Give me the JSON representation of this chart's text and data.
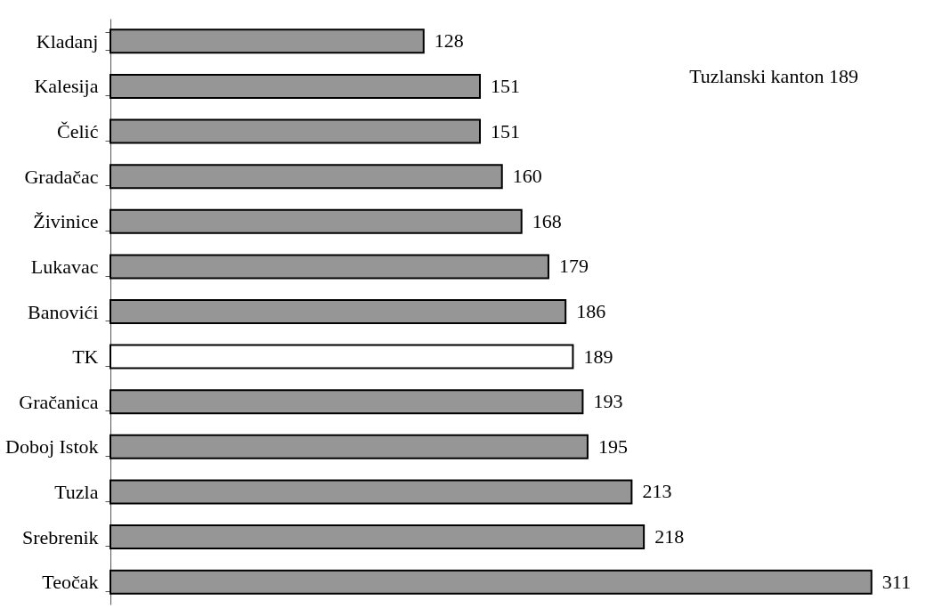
{
  "chart_data": {
    "type": "bar",
    "orientation": "horizontal",
    "categories": [
      "Kladanj",
      "Kalesija",
      "Čelić",
      "Gradačac",
      "Živinice",
      "Lukavac",
      "Banovići",
      "TK",
      "Gračanica",
      "Doboj Istok",
      "Tuzla",
      "Srebrenik",
      "Teočak"
    ],
    "values": [
      128,
      151,
      151,
      160,
      168,
      179,
      186,
      189,
      193,
      195,
      213,
      218,
      311
    ],
    "colors": [
      "#969696",
      "#969696",
      "#969696",
      "#969696",
      "#969696",
      "#969696",
      "#969696",
      "#ffffff",
      "#969696",
      "#969696",
      "#969696",
      "#969696",
      "#969696"
    ],
    "data_labels": true,
    "annotations": [
      "Tuzlanski kanton 189"
    ],
    "grid": false
  }
}
